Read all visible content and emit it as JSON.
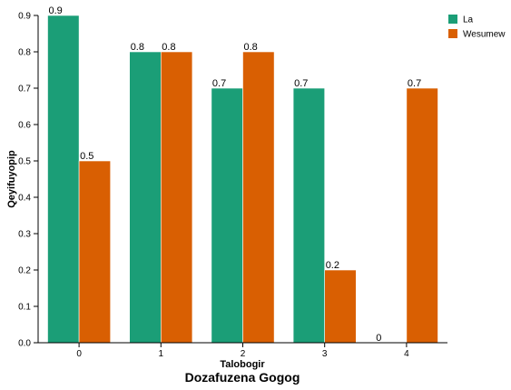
{
  "chart_data": {
    "type": "bar",
    "title": "Dozafuzena Gogog",
    "xlabel": "Talobogir",
    "ylabel": "Qeyifuyopip",
    "categories": [
      "0",
      "1",
      "2",
      "3",
      "4"
    ],
    "series": [
      {
        "name": "La",
        "values": [
          0.9,
          0.8,
          0.7,
          0.7,
          0
        ],
        "labels": [
          "0.9",
          "0.8",
          "0.7",
          "0.7",
          "0"
        ],
        "color": "#1b9e77"
      },
      {
        "name": "Wesumew",
        "values": [
          0.5,
          0.8,
          0.8,
          0.2,
          0.7
        ],
        "labels": [
          "0.5",
          "0.8",
          "0.8",
          "0.2",
          "0.7"
        ],
        "color": "#d95f02"
      }
    ],
    "ylim": [
      0,
      0.9
    ],
    "yticks": [
      "0.0",
      "0.1",
      "0.2",
      "0.3",
      "0.4",
      "0.5",
      "0.6",
      "0.7",
      "0.8",
      "0.9"
    ],
    "grid": false,
    "legend_position": "top-right"
  }
}
